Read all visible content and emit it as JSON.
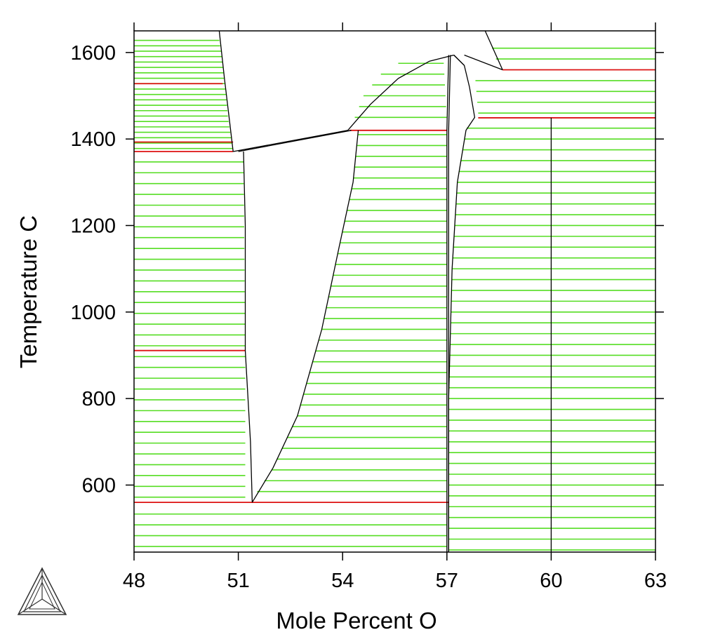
{
  "chart_data": {
    "type": "phase-diagram",
    "xlabel": "Mole Percent O",
    "ylabel": "Temperature C",
    "xlim": [
      48,
      63
    ],
    "ylim": [
      445,
      1650
    ],
    "xticks": [
      48,
      51,
      54,
      57,
      60,
      63
    ],
    "yticks": [
      600,
      800,
      1000,
      1200,
      1400,
      1600
    ],
    "grid": false,
    "legend": "none",
    "logo_icon": "thermo-calc-triangle-icon",
    "colors": {
      "tie_line": "#55dd22",
      "invariant": "#dd1111",
      "boundary": "#000000"
    },
    "invariant_lines": [
      {
        "T": 1528,
        "x": [
          48.0,
          50.55
        ]
      },
      {
        "T": 1393,
        "x": [
          48.0,
          50.85
        ]
      },
      {
        "T": 1371,
        "x": [
          48.0,
          50.85
        ]
      },
      {
        "T": 911,
        "x": [
          48.0,
          51.2
        ]
      },
      {
        "T": 560,
        "x": [
          48.0,
          57.05
        ]
      },
      {
        "T": 1420,
        "x": [
          54.2,
          57.0
        ]
      },
      {
        "T": 1560,
        "x": [
          58.6,
          63.0
        ]
      },
      {
        "T": 1449,
        "x": [
          57.9,
          63.0
        ]
      }
    ],
    "boundary_curves": [
      {
        "name": "",
        "points": [
          [
            50.45,
            1650
          ],
          [
            50.6,
            1540
          ],
          [
            50.75,
            1440
          ],
          [
            50.85,
            1371
          ]
        ]
      },
      {
        "name": "",
        "points": [
          [
            50.85,
            1371
          ],
          [
            54.15,
            1420
          ]
        ]
      },
      {
        "name": "",
        "points": [
          [
            51.0,
            1371
          ],
          [
            54.25,
            1420
          ]
        ]
      },
      {
        "name": "",
        "points": [
          [
            51.15,
            1371
          ],
          [
            51.2,
            1200
          ],
          [
            51.2,
            911
          ],
          [
            51.35,
            700
          ],
          [
            51.4,
            560
          ]
        ]
      },
      {
        "name": "",
        "points": [
          [
            51.4,
            560
          ],
          [
            52.0,
            640
          ],
          [
            52.7,
            760
          ],
          [
            53.4,
            960
          ],
          [
            53.9,
            1150
          ],
          [
            54.3,
            1300
          ],
          [
            54.45,
            1420
          ]
        ]
      },
      {
        "name": "",
        "points": [
          [
            54.15,
            1420
          ],
          [
            54.8,
            1480
          ],
          [
            55.6,
            1540
          ],
          [
            56.5,
            1580
          ],
          [
            57.2,
            1594
          ]
        ]
      },
      {
        "name": "",
        "points": [
          [
            57.05,
            445
          ],
          [
            57.05,
            700
          ],
          [
            57.05,
            1100
          ],
          [
            57.05,
            1420
          ],
          [
            57.1,
            1594
          ]
        ]
      },
      {
        "name": "",
        "points": [
          [
            57.0,
            445
          ],
          [
            57.0,
            700
          ],
          [
            57.0,
            1100
          ],
          [
            57.0,
            1420
          ],
          [
            57.05,
            1594
          ]
        ]
      },
      {
        "name": "",
        "points": [
          [
            57.2,
            1594
          ],
          [
            57.5,
            1570
          ]
        ]
      },
      {
        "name": "",
        "points": [
          [
            57.5,
            1594
          ],
          [
            58.6,
            1560
          ]
        ]
      },
      {
        "name": "",
        "points": [
          [
            58.1,
            1650
          ],
          [
            58.6,
            1560
          ]
        ]
      },
      {
        "name": "",
        "points": [
          [
            57.05,
            445
          ],
          [
            57.05,
            800
          ],
          [
            57.15,
            1100
          ],
          [
            57.3,
            1300
          ],
          [
            57.55,
            1420
          ],
          [
            57.8,
            1450
          ],
          [
            57.65,
            1520
          ],
          [
            57.5,
            1570
          ],
          [
            57.2,
            1594
          ]
        ]
      },
      {
        "name": "",
        "points": [
          [
            60.0,
            445
          ],
          [
            60.0,
            1449
          ]
        ]
      }
    ],
    "tie_line_regions": [
      {
        "x_left": [
          [
            1630,
            48.0
          ],
          [
            1360,
            48.0
          ]
        ],
        "x_right": [
          [
            1630,
            50.45
          ],
          [
            1580,
            50.55
          ],
          [
            1530,
            50.6
          ],
          [
            1500,
            50.65
          ],
          [
            1450,
            50.7
          ],
          [
            1400,
            50.8
          ],
          [
            1375,
            50.85
          ]
        ],
        "T_from": 1378,
        "T_to": 1630,
        "step": 12.5
      },
      {
        "x_left": [
          [
            1360,
            48.0
          ],
          [
            450,
            48.0
          ]
        ],
        "x_right": [
          [
            1360,
            51.15
          ],
          [
            911,
            51.2
          ],
          [
            560,
            51.2
          ]
        ],
        "T_from": 572,
        "T_to": 1360,
        "step": 25.0
      },
      {
        "x_left": [
          [
            560,
            48.0
          ],
          [
            450,
            48.0
          ]
        ],
        "x_right": [
          [
            560,
            57.0
          ],
          [
            450,
            57.0
          ]
        ],
        "T_from": 458,
        "T_to": 548,
        "step": 25.0
      },
      {
        "x_left": [
          [
            1590,
            56.0
          ],
          [
            1560,
            55.2
          ],
          [
            1500,
            54.6
          ],
          [
            1440,
            54.3
          ]
        ],
        "x_right": [
          [
            1590,
            56.9
          ],
          [
            1440,
            57.0
          ]
        ],
        "T_from": 1450,
        "T_to": 1585,
        "step": 25.0
      },
      {
        "x_left": [
          [
            1410,
            54.45
          ],
          [
            1300,
            54.3
          ],
          [
            1150,
            53.9
          ],
          [
            960,
            53.4
          ],
          [
            760,
            52.7
          ],
          [
            640,
            52.0
          ],
          [
            580,
            51.5
          ]
        ],
        "x_right": [
          [
            1410,
            57.0
          ],
          [
            580,
            57.0
          ]
        ],
        "T_from": 585,
        "T_to": 1410,
        "step": 25.0
      },
      {
        "x_left": [
          [
            1610,
            58.3
          ],
          [
            1565,
            58.5
          ]
        ],
        "x_right": [
          [
            1610,
            63.0
          ],
          [
            1565,
            63.0
          ]
        ],
        "T_from": 1585,
        "T_to": 1610,
        "step": 25.0
      },
      {
        "x_left": [
          [
            1555,
            57.8
          ],
          [
            1460,
            57.9
          ]
        ],
        "x_right": [
          [
            1555,
            63.0
          ],
          [
            1460,
            63.0
          ]
        ],
        "T_from": 1460,
        "T_to": 1555,
        "step": 25.0
      },
      {
        "x_left": [
          [
            1440,
            57.6
          ],
          [
            1300,
            57.3
          ],
          [
            1100,
            57.15
          ],
          [
            800,
            57.05
          ],
          [
            450,
            57.05
          ]
        ],
        "x_right": [
          [
            1440,
            63.0
          ],
          [
            450,
            63.0
          ]
        ],
        "T_from": 450,
        "T_to": 1440,
        "step": 25.0
      }
    ]
  }
}
